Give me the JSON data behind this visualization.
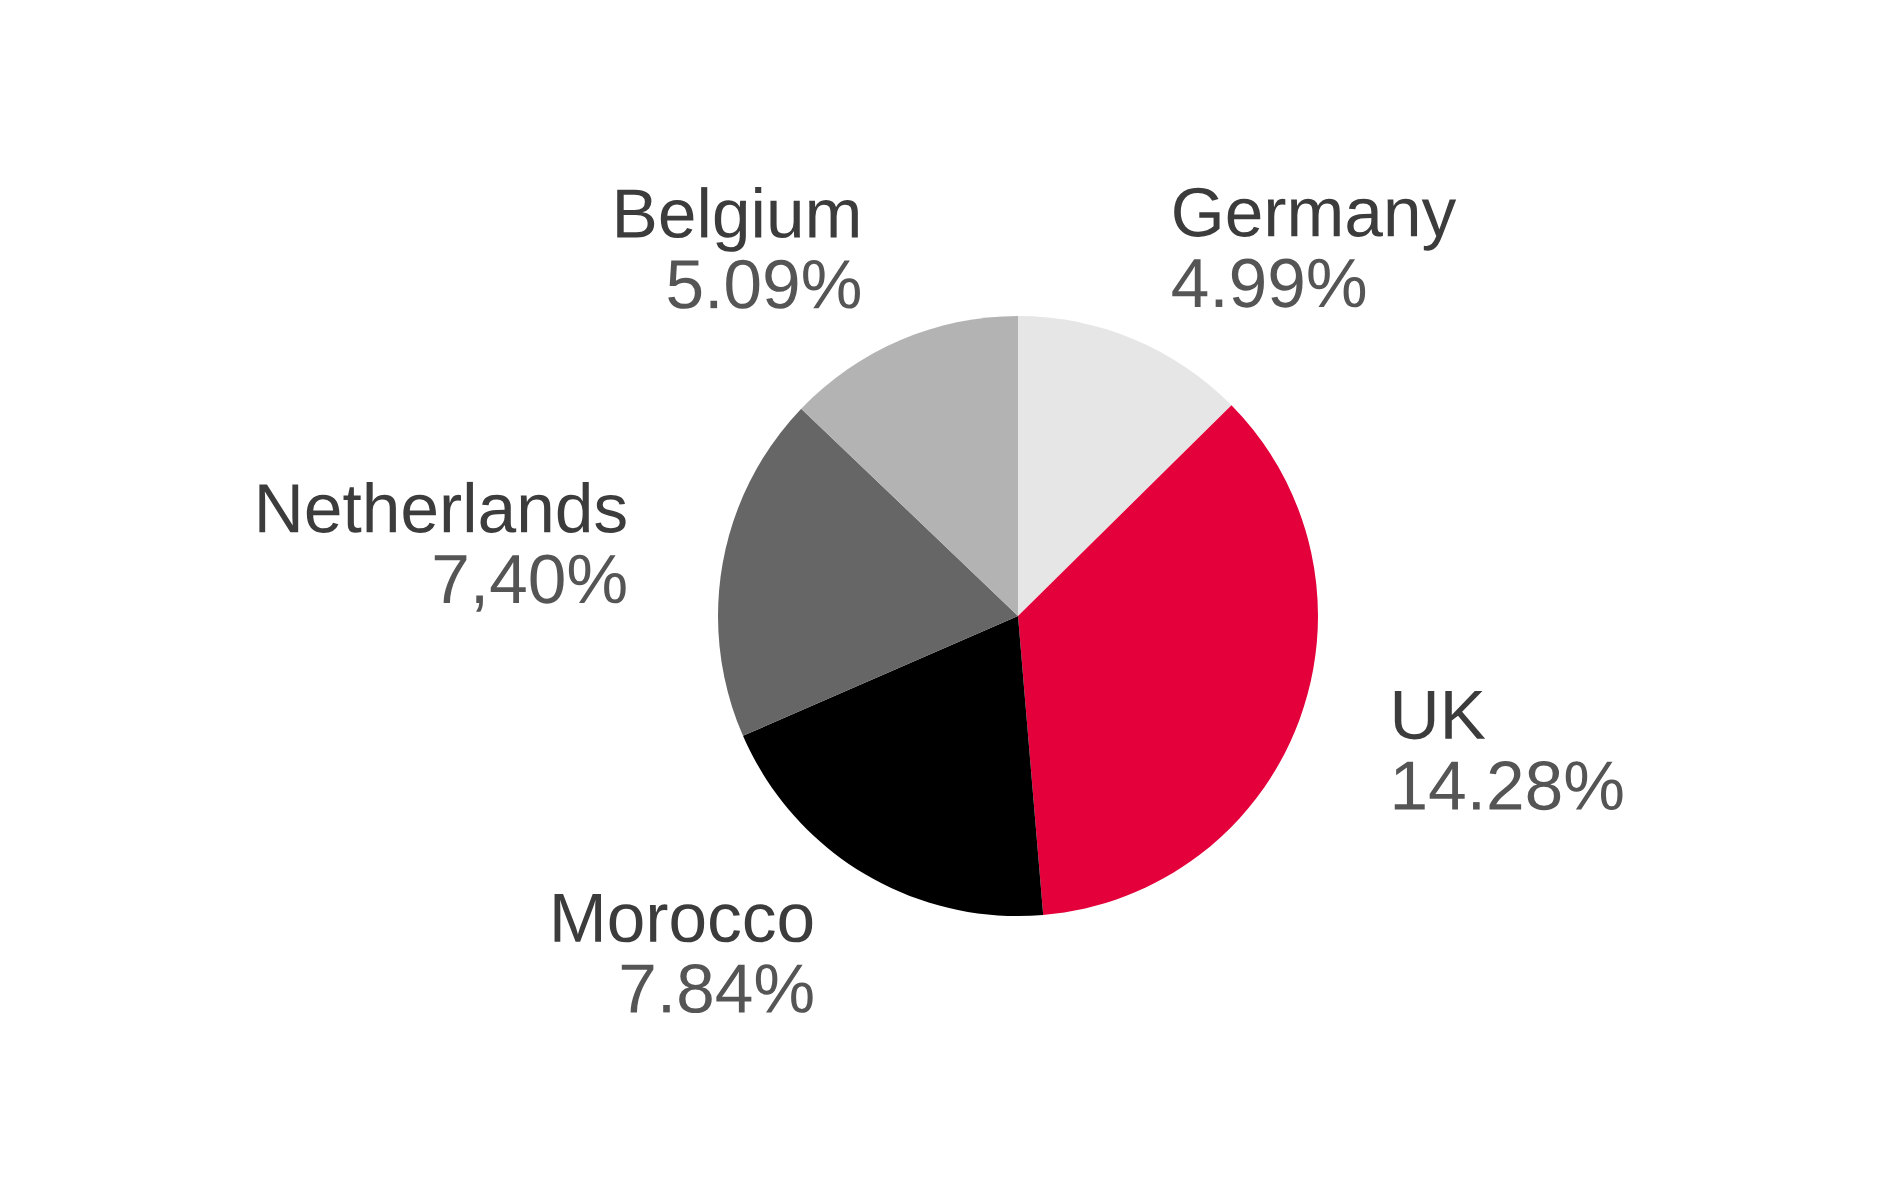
{
  "chart_data": {
    "type": "pie",
    "categories": [
      "Germany",
      "UK",
      "Morocco",
      "Netherlands",
      "Belgium"
    ],
    "values": [
      4.99,
      14.28,
      7.84,
      7.4,
      5.09
    ],
    "value_labels": [
      "4.99%",
      "14.28%",
      "7.84%",
      "7,40%",
      "5.09%"
    ],
    "colors": [
      "#e6e6e6",
      "#e4003b",
      "#000000",
      "#666666",
      "#b3b3b3"
    ],
    "legend": false
  }
}
